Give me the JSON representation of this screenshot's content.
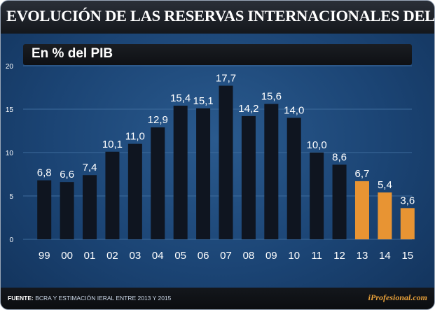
{
  "header": {
    "title": "EVOLUCIÓN DE LAS RESERVAS INTERNACIONALES DEL BCRA"
  },
  "footer": {
    "source_label": "FUENTE:",
    "source_text": "BCRA Y ESTIMACIÓN IERAL ENTRE 2013 Y 2015",
    "brand": "iProfesional.com"
  },
  "colors": {
    "actual": "#0f1520",
    "estimate": "#e89433",
    "label": "#ffffff"
  },
  "chart_data": {
    "type": "bar",
    "title": "EVOLUCIÓN DE LAS RESERVAS INTERNACIONALES DEL BCRA",
    "subtitle": "En % del PIB",
    "xlabel": "",
    "ylabel": "",
    "ylim": [
      0,
      20
    ],
    "yticks": [
      "0",
      "5",
      "10",
      "15",
      "20"
    ],
    "categories": [
      "99",
      "00",
      "01",
      "02",
      "03",
      "04",
      "05",
      "06",
      "07",
      "08",
      "09",
      "10",
      "11",
      "12",
      "13",
      "14",
      "15"
    ],
    "values": [
      6.8,
      6.6,
      7.4,
      10.1,
      11.0,
      12.9,
      15.4,
      15.1,
      17.7,
      14.2,
      15.6,
      14.0,
      10.0,
      8.6,
      6.7,
      5.4,
      3.6
    ],
    "value_labels": [
      "6,8",
      "6,6",
      "7,4",
      "10,1",
      "11,0",
      "12,9",
      "15,4",
      "15,1",
      "17,7",
      "14,2",
      "15,6",
      "14,0",
      "10,0",
      "8,6",
      "6,7",
      "5,4",
      "3,6"
    ],
    "estimated": [
      false,
      false,
      false,
      false,
      false,
      false,
      false,
      false,
      false,
      false,
      false,
      false,
      false,
      false,
      true,
      true,
      true
    ],
    "grid": true
  }
}
